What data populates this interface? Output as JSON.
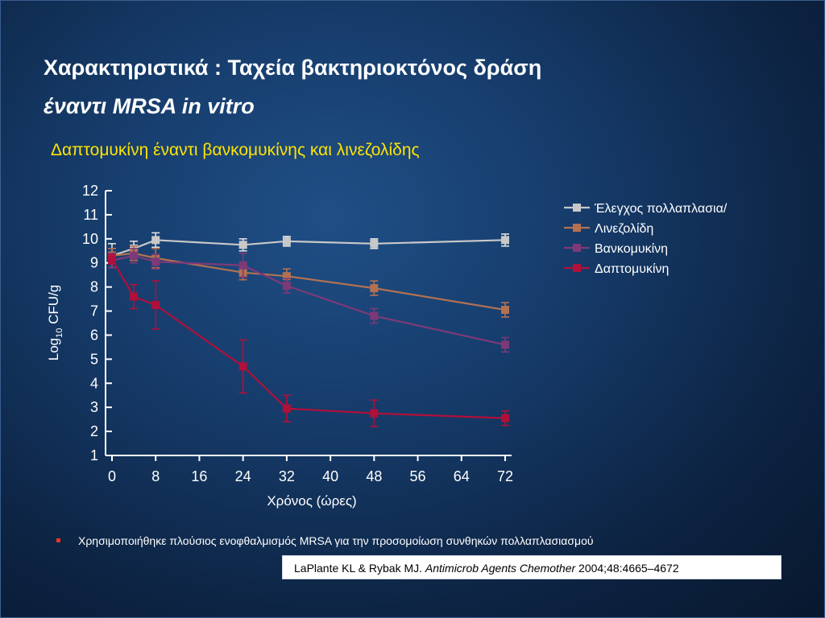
{
  "slide": {
    "title_line1": "Χαρακτηριστικά : Ταχεία βακτηριοκτόνος δράση",
    "title_line2_greek": "έναντι ",
    "title_line2_italic": "MRSA in vitro",
    "subtitle": "Δαπτομυκίνη έναντι βανκομυκίνης και λινεζολίδης",
    "note": "Χρησιμοποιήθηκε πλούσιος ενοφθαλμισμός MRSA για την προσομοίωση συνθηκών πολλαπλασιασμού",
    "citation": {
      "authors": "LaPlante KL & Rybak MJ. ",
      "journal": "Antimicrob Agents Chemother",
      "details": " 2004;48:4665–4672"
    }
  },
  "chart_data": {
    "type": "line",
    "title": "",
    "xlabel": "Χρόνος (ώρες)",
    "ylabel_base": "Log",
    "ylabel_sub": "10",
    "ylabel_unit": " CFU/g",
    "xlim": [
      0,
      72
    ],
    "ylim": [
      1,
      12
    ],
    "x_ticks": [
      0,
      8,
      16,
      24,
      32,
      40,
      48,
      56,
      64,
      72
    ],
    "y_ticks": [
      1,
      2,
      3,
      4,
      5,
      6,
      7,
      8,
      9,
      10,
      11,
      12
    ],
    "grid": false,
    "legend_position": "right-top",
    "series": [
      {
        "name": "Έλεγχος πολλαπλασια/",
        "color": "#c8c8c8",
        "points": [
          {
            "x": 0,
            "y": 9.3,
            "err": 0.5
          },
          {
            "x": 4,
            "y": 9.6,
            "err": 0.3
          },
          {
            "x": 8,
            "y": 9.95,
            "err": 0.3
          },
          {
            "x": 24,
            "y": 9.75,
            "err": 0.25
          },
          {
            "x": 32,
            "y": 9.9,
            "err": 0.2
          },
          {
            "x": 48,
            "y": 9.8,
            "err": 0.2
          },
          {
            "x": 72,
            "y": 9.95,
            "err": 0.25
          }
        ]
      },
      {
        "name": "Λινεζολίδη",
        "color": "#b37152",
        "points": [
          {
            "x": 0,
            "y": 9.3,
            "err": 0.3
          },
          {
            "x": 4,
            "y": 9.4,
            "err": 0.3
          },
          {
            "x": 8,
            "y": 9.2,
            "err": 0.4
          },
          {
            "x": 24,
            "y": 8.6,
            "err": 0.3
          },
          {
            "x": 32,
            "y": 8.45,
            "err": 0.3
          },
          {
            "x": 48,
            "y": 7.95,
            "err": 0.3
          },
          {
            "x": 72,
            "y": 7.05,
            "err": 0.3
          }
        ]
      },
      {
        "name": "Βανκομυκίνη",
        "color": "#7d3a77",
        "points": [
          {
            "x": 0,
            "y": 9.1,
            "err": 0.3
          },
          {
            "x": 4,
            "y": 9.3,
            "err": 0.3
          },
          {
            "x": 8,
            "y": 9.05,
            "err": 0.3
          },
          {
            "x": 24,
            "y": 8.9,
            "err": 0.5
          },
          {
            "x": 32,
            "y": 8.05,
            "err": 0.3
          },
          {
            "x": 48,
            "y": 6.8,
            "err": 0.3
          },
          {
            "x": 72,
            "y": 5.6,
            "err": 0.3
          }
        ]
      },
      {
        "name": "Δαπτομυκίνη",
        "color": "#b0103a",
        "points": [
          {
            "x": 0,
            "y": 9.15,
            "err": 0.2
          },
          {
            "x": 4,
            "y": 7.6,
            "err": 0.5
          },
          {
            "x": 8,
            "y": 7.25,
            "err": 1.0
          },
          {
            "x": 24,
            "y": 4.7,
            "err": 1.1
          },
          {
            "x": 32,
            "y": 2.95,
            "err": 0.55
          },
          {
            "x": 48,
            "y": 2.75,
            "err": 0.55
          },
          {
            "x": 72,
            "y": 2.55,
            "err": 0.3
          }
        ]
      }
    ]
  }
}
